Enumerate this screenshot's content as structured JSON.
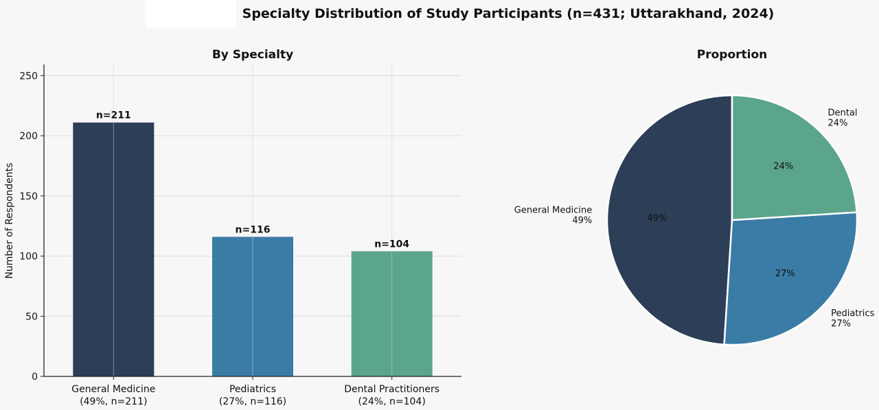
{
  "figure": {
    "title": "Specialty Distribution of Study Participants (n=431; Uttarakhand, 2024)"
  },
  "chart_data": [
    {
      "type": "bar",
      "title": "By Specialty",
      "xlabel": "",
      "ylabel": "Number of Respondents",
      "ylim": [
        0,
        260
      ],
      "yticks": [
        0,
        50,
        100,
        150,
        200,
        250
      ],
      "categories": [
        "General Medicine",
        "Pediatrics",
        "Dental Practitioners"
      ],
      "category_sublabels": [
        "(49%, n=211)",
        "(27%, n=116)",
        "(24%, n=104)"
      ],
      "values": [
        211,
        116,
        104
      ],
      "data_labels": [
        "n=211",
        "n=116",
        "n=104"
      ],
      "colors": [
        "#2d3e57",
        "#3a7ca5",
        "#5ba58b"
      ],
      "grid": true
    },
    {
      "type": "pie",
      "title": "Proportion",
      "labels": [
        "General Medicine",
        "Pediatrics",
        "Dental"
      ],
      "values": [
        49,
        27,
        24
      ],
      "outer_labels": [
        "49%",
        "27%",
        "24%"
      ],
      "pct_labels": [
        "49%",
        "27%",
        "24%"
      ],
      "colors": [
        "#2d3e57",
        "#3a7ca5",
        "#5ba58b"
      ],
      "start": "top, counter-clockwise from General Medicine"
    }
  ]
}
